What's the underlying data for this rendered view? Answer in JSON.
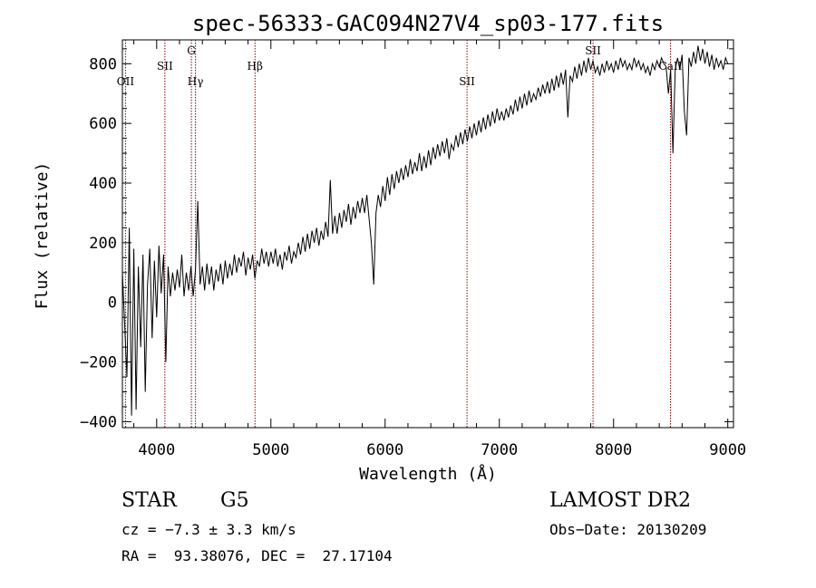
{
  "chart_data": {
    "type": "line",
    "title": "spec-56333-GAC094N27V4_sp03-177.fits",
    "xlabel": "Wavelength (Å)",
    "ylabel": "Flux (relative)",
    "xlim": [
      3700,
      9050
    ],
    "ylim": [
      -420,
      880
    ],
    "x_ticks": [
      "4000",
      "5000",
      "6000",
      "7000",
      "8000",
      "9000"
    ],
    "y_ticks": [
      "−400",
      "−200",
      "0",
      "200",
      "400",
      "600",
      "800"
    ],
    "x_tick_values": [
      4000,
      5000,
      6000,
      7000,
      8000,
      9000
    ],
    "y_tick_values": [
      -400,
      -200,
      0,
      200,
      400,
      600,
      800
    ],
    "series": [
      {
        "values": [
          [
            3700,
            100
          ],
          [
            3740,
            -250
          ],
          [
            3760,
            250
          ],
          [
            3780,
            -380
          ],
          [
            3800,
            180
          ],
          [
            3820,
            -360
          ],
          [
            3840,
            120
          ],
          [
            3860,
            -150
          ],
          [
            3880,
            160
          ],
          [
            3900,
            -300
          ],
          [
            3920,
            60
          ],
          [
            3940,
            180
          ],
          [
            3960,
            -120
          ],
          [
            3980,
            140
          ],
          [
            4000,
            -50
          ],
          [
            4020,
            190
          ],
          [
            4040,
            30
          ],
          [
            4060,
            160
          ],
          [
            4080,
            -200
          ],
          [
            4100,
            120
          ],
          [
            4120,
            20
          ],
          [
            4140,
            100
          ],
          [
            4160,
            40
          ],
          [
            4180,
            110
          ],
          [
            4200,
            50
          ],
          [
            4220,
            160
          ],
          [
            4240,
            20
          ],
          [
            4260,
            100
          ],
          [
            4280,
            40
          ],
          [
            4300,
            120
          ],
          [
            4320,
            20
          ],
          [
            4340,
            110
          ],
          [
            4360,
            340
          ],
          [
            4380,
            60
          ],
          [
            4400,
            120
          ],
          [
            4420,
            40
          ],
          [
            4440,
            130
          ],
          [
            4460,
            60
          ],
          [
            4480,
            120
          ],
          [
            4500,
            40
          ],
          [
            4520,
            110
          ],
          [
            4540,
            70
          ],
          [
            4560,
            130
          ],
          [
            4580,
            60
          ],
          [
            4600,
            140
          ],
          [
            4620,
            80
          ],
          [
            4640,
            130
          ],
          [
            4660,
            90
          ],
          [
            4680,
            160
          ],
          [
            4700,
            100
          ],
          [
            4720,
            150
          ],
          [
            4740,
            120
          ],
          [
            4760,
            170
          ],
          [
            4780,
            90
          ],
          [
            4800,
            150
          ],
          [
            4820,
            110
          ],
          [
            4840,
            160
          ],
          [
            4860,
            80
          ],
          [
            4880,
            140
          ],
          [
            4900,
            120
          ],
          [
            4920,
            180
          ],
          [
            4940,
            130
          ],
          [
            4960,
            170
          ],
          [
            4980,
            120
          ],
          [
            5000,
            170
          ],
          [
            5020,
            130
          ],
          [
            5040,
            180
          ],
          [
            5060,
            120
          ],
          [
            5080,
            160
          ],
          [
            5100,
            110
          ],
          [
            5120,
            170
          ],
          [
            5140,
            140
          ],
          [
            5160,
            190
          ],
          [
            5180,
            130
          ],
          [
            5200,
            170
          ],
          [
            5220,
            150
          ],
          [
            5240,
            200
          ],
          [
            5260,
            160
          ],
          [
            5280,
            220
          ],
          [
            5300,
            170
          ],
          [
            5320,
            230
          ],
          [
            5340,
            180
          ],
          [
            5360,
            240
          ],
          [
            5380,
            200
          ],
          [
            5400,
            250
          ],
          [
            5420,
            190
          ],
          [
            5440,
            240
          ],
          [
            5460,
            210
          ],
          [
            5480,
            270
          ],
          [
            5500,
            220
          ],
          [
            5520,
            410
          ],
          [
            5540,
            230
          ],
          [
            5560,
            290
          ],
          [
            5580,
            230
          ],
          [
            5600,
            300
          ],
          [
            5620,
            250
          ],
          [
            5640,
            310
          ],
          [
            5660,
            270
          ],
          [
            5680,
            330
          ],
          [
            5700,
            260
          ],
          [
            5720,
            320
          ],
          [
            5740,
            280
          ],
          [
            5760,
            340
          ],
          [
            5780,
            300
          ],
          [
            5800,
            350
          ],
          [
            5820,
            300
          ],
          [
            5840,
            360
          ],
          [
            5860,
            280
          ],
          [
            5880,
            200
          ],
          [
            5900,
            60
          ],
          [
            5920,
            300
          ],
          [
            5940,
            360
          ],
          [
            5960,
            320
          ],
          [
            5980,
            390
          ],
          [
            6000,
            340
          ],
          [
            6020,
            420
          ],
          [
            6040,
            360
          ],
          [
            6060,
            430
          ],
          [
            6080,
            380
          ],
          [
            6100,
            440
          ],
          [
            6120,
            400
          ],
          [
            6140,
            450
          ],
          [
            6160,
            410
          ],
          [
            6180,
            460
          ],
          [
            6200,
            420
          ],
          [
            6220,
            480
          ],
          [
            6240,
            430
          ],
          [
            6260,
            470
          ],
          [
            6280,
            440
          ],
          [
            6300,
            500
          ],
          [
            6320,
            440
          ],
          [
            6340,
            490
          ],
          [
            6360,
            450
          ],
          [
            6380,
            510
          ],
          [
            6400,
            460
          ],
          [
            6420,
            520
          ],
          [
            6440,
            480
          ],
          [
            6460,
            530
          ],
          [
            6480,
            490
          ],
          [
            6500,
            540
          ],
          [
            6520,
            500
          ],
          [
            6540,
            550
          ],
          [
            6560,
            480
          ],
          [
            6580,
            530
          ],
          [
            6600,
            510
          ],
          [
            6620,
            560
          ],
          [
            6640,
            520
          ],
          [
            6660,
            570
          ],
          [
            6680,
            530
          ],
          [
            6700,
            580
          ],
          [
            6720,
            540
          ],
          [
            6740,
            590
          ],
          [
            6760,
            550
          ],
          [
            6780,
            600
          ],
          [
            6800,
            560
          ],
          [
            6820,
            610
          ],
          [
            6840,
            570
          ],
          [
            6860,
            620
          ],
          [
            6880,
            580
          ],
          [
            6900,
            630
          ],
          [
            6920,
            590
          ],
          [
            6940,
            640
          ],
          [
            6960,
            600
          ],
          [
            6980,
            650
          ],
          [
            7000,
            610
          ],
          [
            7020,
            640
          ],
          [
            7040,
            610
          ],
          [
            7060,
            650
          ],
          [
            7080,
            620
          ],
          [
            7100,
            660
          ],
          [
            7120,
            630
          ],
          [
            7140,
            680
          ],
          [
            7160,
            640
          ],
          [
            7180,
            690
          ],
          [
            7200,
            650
          ],
          [
            7220,
            700
          ],
          [
            7240,
            660
          ],
          [
            7260,
            710
          ],
          [
            7280,
            670
          ],
          [
            7300,
            700
          ],
          [
            7320,
            680
          ],
          [
            7340,
            720
          ],
          [
            7360,
            690
          ],
          [
            7380,
            730
          ],
          [
            7400,
            700
          ],
          [
            7420,
            740
          ],
          [
            7440,
            700
          ],
          [
            7460,
            750
          ],
          [
            7480,
            710
          ],
          [
            7500,
            760
          ],
          [
            7520,
            720
          ],
          [
            7540,
            770
          ],
          [
            7560,
            730
          ],
          [
            7580,
            780
          ],
          [
            7600,
            620
          ],
          [
            7620,
            760
          ],
          [
            7640,
            740
          ],
          [
            7660,
            790
          ],
          [
            7680,
            750
          ],
          [
            7700,
            800
          ],
          [
            7720,
            760
          ],
          [
            7740,
            810
          ],
          [
            7760,
            770
          ],
          [
            7780,
            820
          ],
          [
            7800,
            780
          ],
          [
            7820,
            810
          ],
          [
            7840,
            770
          ],
          [
            7860,
            790
          ],
          [
            7880,
            760
          ],
          [
            7900,
            800
          ],
          [
            7920,
            770
          ],
          [
            7940,
            810
          ],
          [
            7960,
            780
          ],
          [
            7980,
            800
          ],
          [
            8000,
            770
          ],
          [
            8020,
            810
          ],
          [
            8040,
            780
          ],
          [
            8060,
            820
          ],
          [
            8080,
            790
          ],
          [
            8100,
            810
          ],
          [
            8120,
            780
          ],
          [
            8140,
            800
          ],
          [
            8160,
            780
          ],
          [
            8180,
            820
          ],
          [
            8200,
            790
          ],
          [
            8220,
            810
          ],
          [
            8240,
            780
          ],
          [
            8260,
            800
          ],
          [
            8280,
            770
          ],
          [
            8300,
            790
          ],
          [
            8320,
            760
          ],
          [
            8340,
            800
          ],
          [
            8360,
            780
          ],
          [
            8380,
            810
          ],
          [
            8400,
            790
          ],
          [
            8420,
            820
          ],
          [
            8440,
            800
          ],
          [
            8460,
            790
          ],
          [
            8480,
            700
          ],
          [
            8500,
            780
          ],
          [
            8520,
            500
          ],
          [
            8540,
            780
          ],
          [
            8560,
            820
          ],
          [
            8580,
            780
          ],
          [
            8600,
            830
          ],
          [
            8620,
            640
          ],
          [
            8640,
            560
          ],
          [
            8660,
            820
          ],
          [
            8680,
            790
          ],
          [
            8700,
            840
          ],
          [
            8720,
            800
          ],
          [
            8740,
            860
          ],
          [
            8760,
            810
          ],
          [
            8780,
            850
          ],
          [
            8800,
            800
          ],
          [
            8820,
            840
          ],
          [
            8840,
            790
          ],
          [
            8860,
            830
          ],
          [
            8880,
            780
          ],
          [
            8900,
            820
          ],
          [
            8920,
            790
          ],
          [
            8940,
            810
          ],
          [
            8960,
            780
          ],
          [
            8980,
            820
          ],
          [
            9000,
            800
          ]
        ]
      }
    ],
    "lines": [
      {
        "x": 3727,
        "label": "OII"
      },
      {
        "x": 4072,
        "label": "SII"
      },
      {
        "x": 4304,
        "label": "G"
      },
      {
        "x": 4340,
        "label": "Hγ"
      },
      {
        "x": 4861,
        "label": "Hβ"
      },
      {
        "x": 6717,
        "label": "SII"
      },
      {
        "x": 7820,
        "label": "SII"
      },
      {
        "x": 8498,
        "label": "CaII"
      }
    ],
    "line_color": "#8b0000"
  },
  "info": {
    "class": "STAR",
    "subclass": "G5",
    "survey": "LAMOST DR2",
    "cz": "cz = −7.3 ± 3.3 km/s",
    "obs_date": "Obs−Date: 20130209",
    "coords": "RA =  93.38076, DEC =  27.17104"
  }
}
